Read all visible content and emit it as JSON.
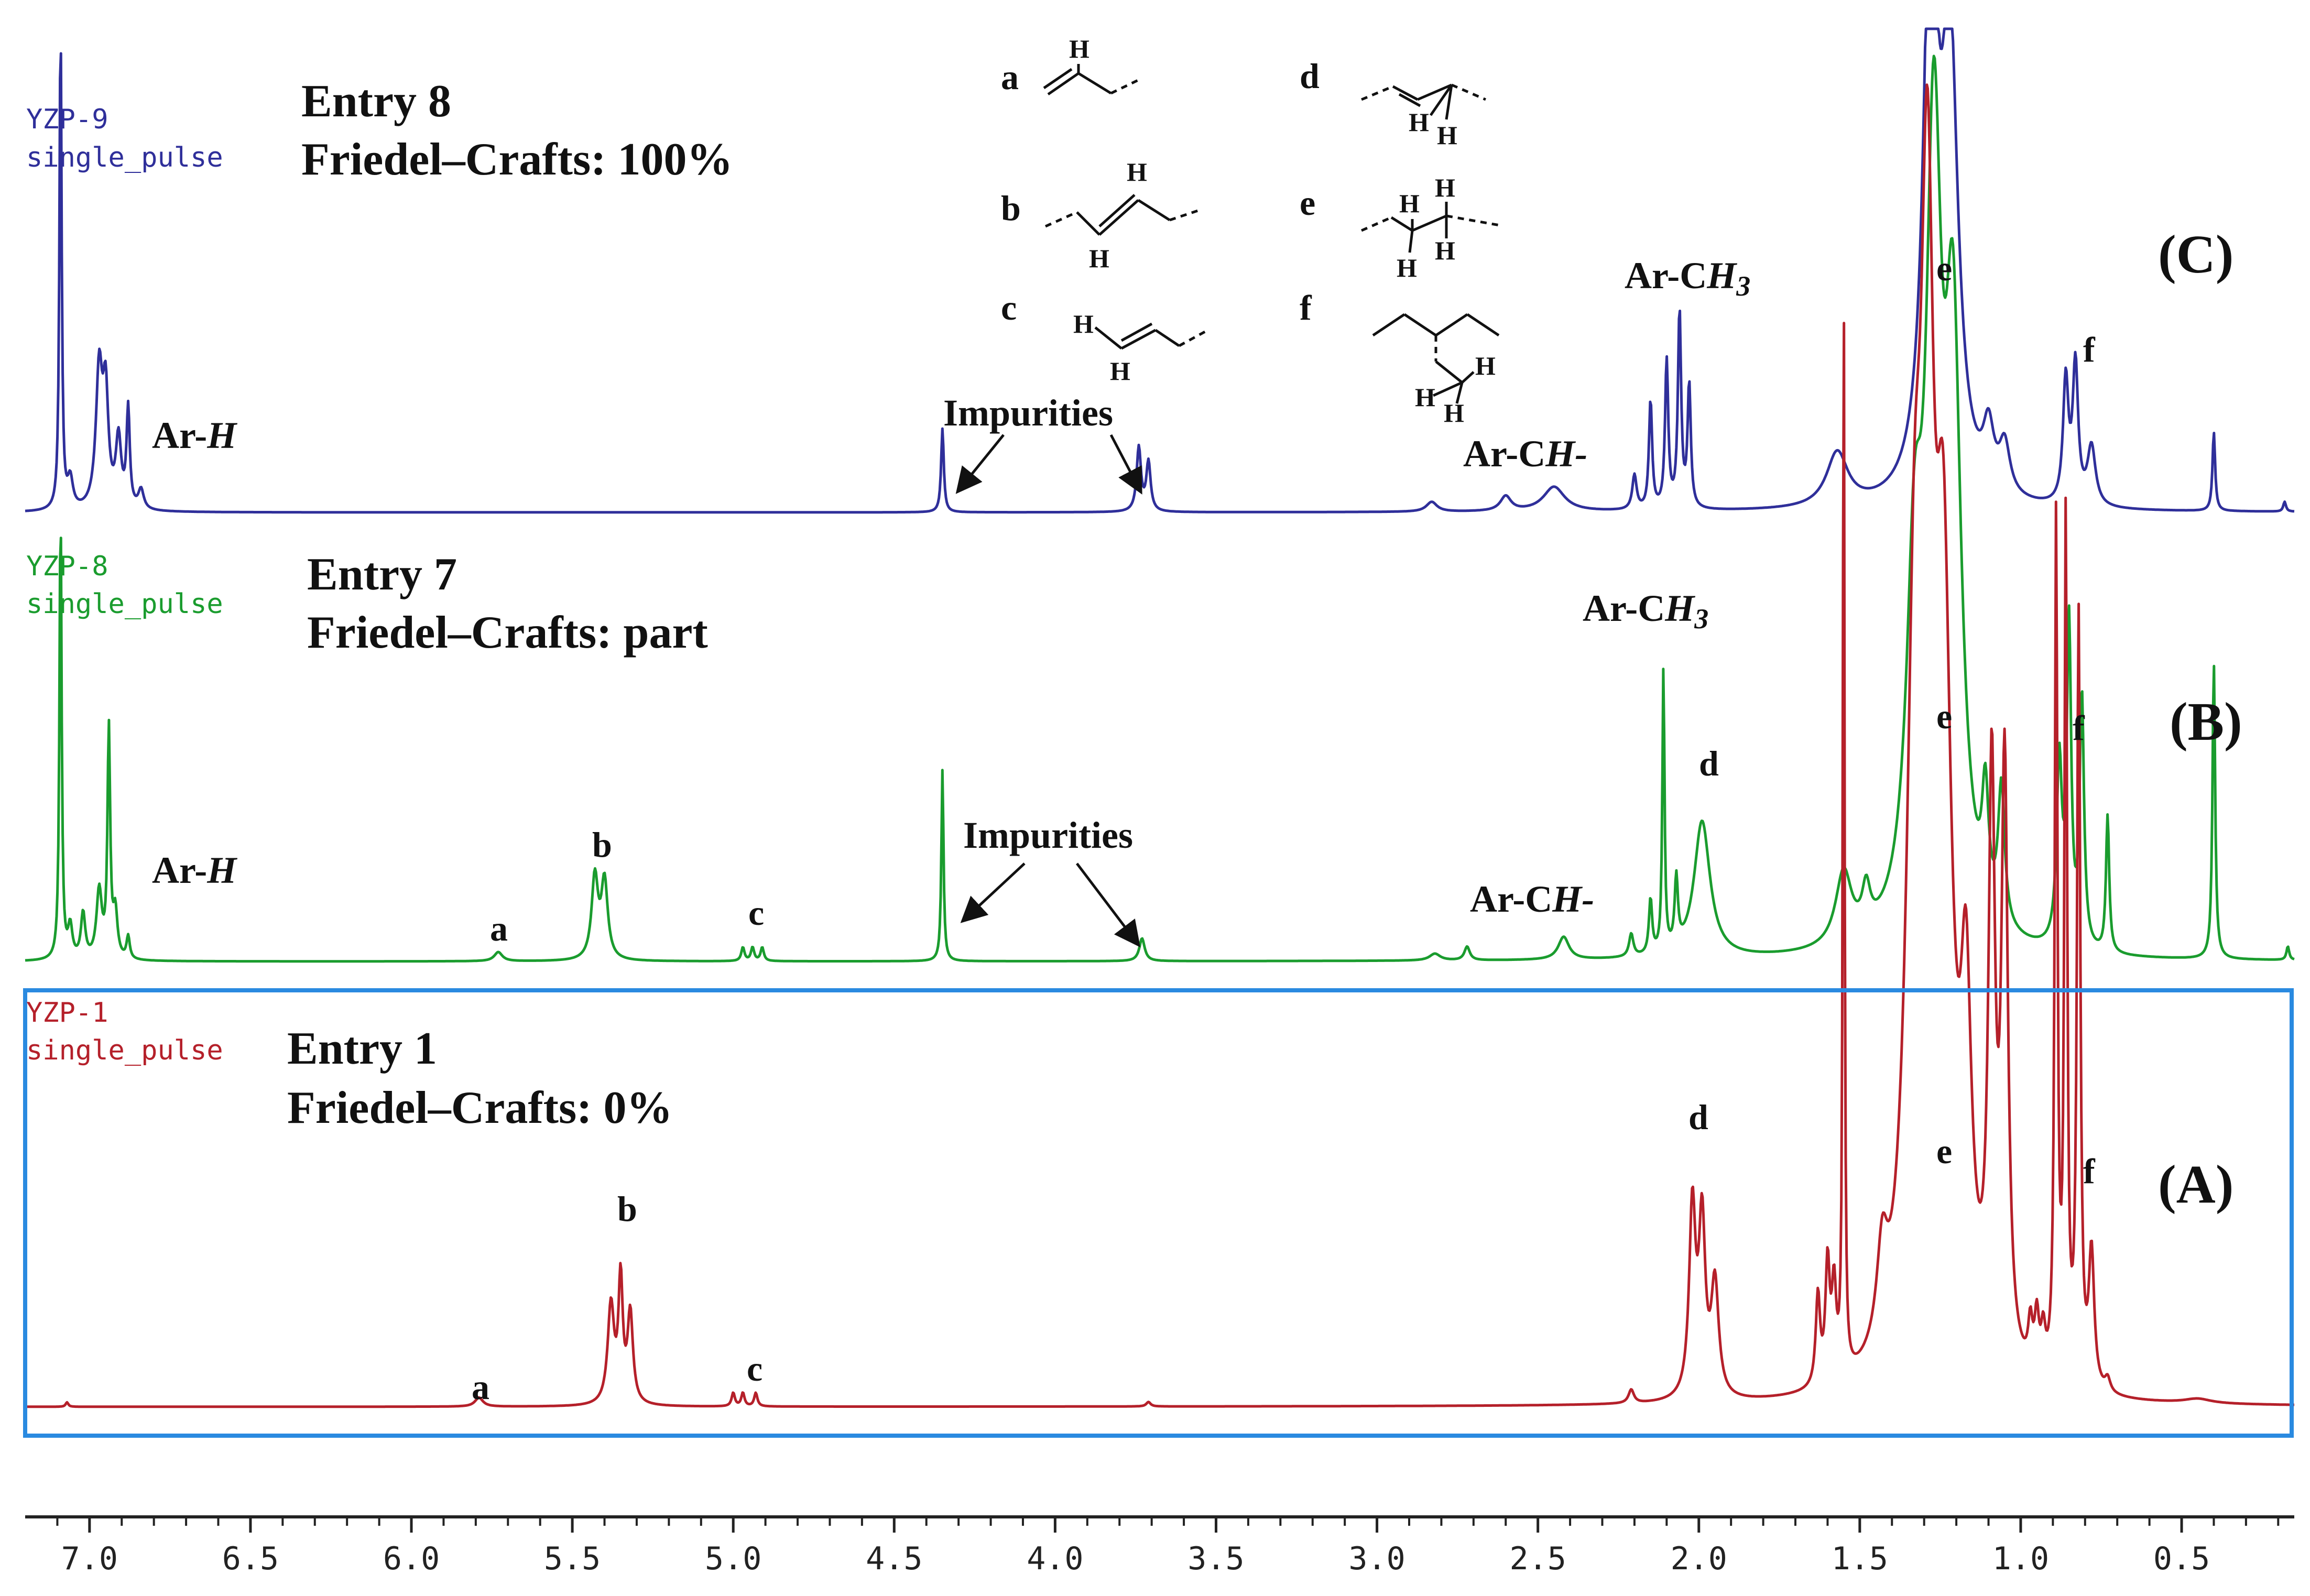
{
  "chart_data": {
    "type": "line",
    "title": "",
    "xlabel": "",
    "ylabel": "",
    "xlim": [
      7.2,
      0.15
    ],
    "x_reversed": true,
    "grid": false,
    "x_ticks": [
      "7.0",
      "6.5",
      "6.0",
      "5.5",
      "5.0",
      "4.5",
      "4.0",
      "3.5",
      "3.0",
      "2.5",
      "2.0",
      "1.5",
      "1.0",
      "0.5"
    ],
    "x_tick_values": [
      7.0,
      6.5,
      6.0,
      5.5,
      5.0,
      4.5,
      4.0,
      3.5,
      3.0,
      2.5,
      2.0,
      1.5,
      1.0,
      0.5
    ],
    "colors": {
      "C": "#2f2f9a",
      "B": "#1a9c2e",
      "A": "#b5202a",
      "box": "#2a8ae0"
    },
    "series": [
      {
        "key": "C",
        "name": "YZP-9",
        "sub": "single_pulse",
        "entry": "Entry 8",
        "fc": "Friedel–Crafts: 100%",
        "panel": "(C)",
        "peaks": [
          {
            "x": 7.09,
            "h": 1.0,
            "w": 0.004
          },
          {
            "x": 7.06,
            "h": 0.06,
            "w": 0.01
          },
          {
            "x": 6.97,
            "h": 0.28,
            "w": 0.012
          },
          {
            "x": 6.95,
            "h": 0.22,
            "w": 0.01
          },
          {
            "x": 6.91,
            "h": 0.14,
            "w": 0.01
          },
          {
            "x": 6.88,
            "h": 0.2,
            "w": 0.006
          },
          {
            "x": 6.84,
            "h": 0.04,
            "w": 0.01
          },
          {
            "x": 4.35,
            "h": 0.17,
            "w": 0.005
          },
          {
            "x": 3.74,
            "h": 0.13,
            "w": 0.008
          },
          {
            "x": 3.71,
            "h": 0.1,
            "w": 0.008
          },
          {
            "x": 2.83,
            "h": 0.02,
            "w": 0.02
          },
          {
            "x": 2.6,
            "h": 0.03,
            "w": 0.02
          },
          {
            "x": 2.45,
            "h": 0.05,
            "w": 0.04
          },
          {
            "x": 2.2,
            "h": 0.07,
            "w": 0.008
          },
          {
            "x": 2.15,
            "h": 0.22,
            "w": 0.006
          },
          {
            "x": 2.1,
            "h": 0.3,
            "w": 0.006
          },
          {
            "x": 2.06,
            "h": 0.4,
            "w": 0.006
          },
          {
            "x": 2.03,
            "h": 0.25,
            "w": 0.006
          },
          {
            "x": 1.57,
            "h": 0.11,
            "w": 0.04
          },
          {
            "x": 1.28,
            "h": 1.2,
            "w": 0.025
          },
          {
            "x": 1.22,
            "h": 0.9,
            "w": 0.03
          },
          {
            "x": 1.1,
            "h": 0.12,
            "w": 0.02
          },
          {
            "x": 1.05,
            "h": 0.1,
            "w": 0.02
          },
          {
            "x": 0.86,
            "h": 0.25,
            "w": 0.01
          },
          {
            "x": 0.83,
            "h": 0.28,
            "w": 0.01
          },
          {
            "x": 0.78,
            "h": 0.12,
            "w": 0.015
          },
          {
            "x": 0.4,
            "h": 0.16,
            "w": 0.005
          },
          {
            "x": 0.18,
            "h": 0.02,
            "w": 0.005
          }
        ]
      },
      {
        "key": "B",
        "name": "YZP-8",
        "sub": "single_pulse",
        "entry": "Entry 7",
        "fc": "Friedel–Crafts: part",
        "panel": "(B)",
        "peaks": [
          {
            "x": 7.09,
            "h": 1.0,
            "w": 0.004
          },
          {
            "x": 7.06,
            "h": 0.07,
            "w": 0.008
          },
          {
            "x": 7.02,
            "h": 0.1,
            "w": 0.008
          },
          {
            "x": 6.97,
            "h": 0.15,
            "w": 0.01
          },
          {
            "x": 6.94,
            "h": 0.5,
            "w": 0.005
          },
          {
            "x": 6.92,
            "h": 0.1,
            "w": 0.008
          },
          {
            "x": 6.88,
            "h": 0.05,
            "w": 0.006
          },
          {
            "x": 5.73,
            "h": 0.02,
            "w": 0.015
          },
          {
            "x": 5.43,
            "h": 0.18,
            "w": 0.012
          },
          {
            "x": 5.4,
            "h": 0.17,
            "w": 0.012
          },
          {
            "x": 4.97,
            "h": 0.03,
            "w": 0.006
          },
          {
            "x": 4.94,
            "h": 0.03,
            "w": 0.006
          },
          {
            "x": 4.91,
            "h": 0.03,
            "w": 0.006
          },
          {
            "x": 4.35,
            "h": 0.42,
            "w": 0.004
          },
          {
            "x": 3.73,
            "h": 0.05,
            "w": 0.01
          },
          {
            "x": 2.82,
            "h": 0.015,
            "w": 0.02
          },
          {
            "x": 2.72,
            "h": 0.03,
            "w": 0.01
          },
          {
            "x": 2.42,
            "h": 0.05,
            "w": 0.02
          },
          {
            "x": 2.21,
            "h": 0.05,
            "w": 0.008
          },
          {
            "x": 2.15,
            "h": 0.12,
            "w": 0.006
          },
          {
            "x": 2.11,
            "h": 0.62,
            "w": 0.004
          },
          {
            "x": 2.07,
            "h": 0.15,
            "w": 0.006
          },
          {
            "x": 1.99,
            "h": 0.3,
            "w": 0.03
          },
          {
            "x": 1.55,
            "h": 0.16,
            "w": 0.03
          },
          {
            "x": 1.48,
            "h": 0.09,
            "w": 0.015
          },
          {
            "x": 1.33,
            "h": 0.7,
            "w": 0.03
          },
          {
            "x": 1.27,
            "h": 1.6,
            "w": 0.03
          },
          {
            "x": 1.21,
            "h": 1.2,
            "w": 0.03
          },
          {
            "x": 1.11,
            "h": 0.25,
            "w": 0.012
          },
          {
            "x": 1.06,
            "h": 0.3,
            "w": 0.012
          },
          {
            "x": 0.88,
            "h": 0.4,
            "w": 0.01
          },
          {
            "x": 0.85,
            "h": 0.7,
            "w": 0.008
          },
          {
            "x": 0.81,
            "h": 0.55,
            "w": 0.008
          },
          {
            "x": 0.73,
            "h": 0.3,
            "w": 0.006
          },
          {
            "x": 0.4,
            "h": 0.65,
            "w": 0.005
          },
          {
            "x": 0.17,
            "h": 0.03,
            "w": 0.005
          }
        ]
      },
      {
        "key": "A",
        "name": "YZP-1",
        "sub": "single_pulse",
        "entry": "Entry 1",
        "fc": "Friedel–Crafts: 0%",
        "panel": "(A)",
        "peaks": [
          {
            "x": 7.07,
            "h": 0.01,
            "w": 0.005
          },
          {
            "x": 5.79,
            "h": 0.02,
            "w": 0.015
          },
          {
            "x": 5.38,
            "h": 0.22,
            "w": 0.012
          },
          {
            "x": 5.35,
            "h": 0.27,
            "w": 0.008
          },
          {
            "x": 5.32,
            "h": 0.2,
            "w": 0.01
          },
          {
            "x": 5.0,
            "h": 0.03,
            "w": 0.006
          },
          {
            "x": 4.97,
            "h": 0.03,
            "w": 0.006
          },
          {
            "x": 4.93,
            "h": 0.03,
            "w": 0.006
          },
          {
            "x": 3.71,
            "h": 0.01,
            "w": 0.008
          },
          {
            "x": 2.21,
            "h": 0.03,
            "w": 0.01
          },
          {
            "x": 2.02,
            "h": 0.42,
            "w": 0.012
          },
          {
            "x": 1.99,
            "h": 0.38,
            "w": 0.012
          },
          {
            "x": 1.95,
            "h": 0.25,
            "w": 0.014
          },
          {
            "x": 1.63,
            "h": 0.2,
            "w": 0.008
          },
          {
            "x": 1.6,
            "h": 0.26,
            "w": 0.008
          },
          {
            "x": 1.58,
            "h": 0.2,
            "w": 0.008
          },
          {
            "x": 1.55,
            "h": 2.5,
            "w": 0.003
          },
          {
            "x": 1.43,
            "h": 0.2,
            "w": 0.02
          },
          {
            "x": 1.33,
            "h": 1.4,
            "w": 0.03
          },
          {
            "x": 1.29,
            "h": 2.0,
            "w": 0.025
          },
          {
            "x": 1.24,
            "h": 1.5,
            "w": 0.03
          },
          {
            "x": 1.17,
            "h": 0.7,
            "w": 0.02
          },
          {
            "x": 1.09,
            "h": 1.25,
            "w": 0.012
          },
          {
            "x": 1.05,
            "h": 1.3,
            "w": 0.012
          },
          {
            "x": 0.97,
            "h": 0.1,
            "w": 0.008
          },
          {
            "x": 0.95,
            "h": 0.12,
            "w": 0.008
          },
          {
            "x": 0.93,
            "h": 0.09,
            "w": 0.008
          },
          {
            "x": 0.89,
            "h": 1.9,
            "w": 0.005
          },
          {
            "x": 0.86,
            "h": 1.9,
            "w": 0.005
          },
          {
            "x": 0.82,
            "h": 1.7,
            "w": 0.006
          },
          {
            "x": 0.78,
            "h": 0.3,
            "w": 0.01
          },
          {
            "x": 0.73,
            "h": 0.03,
            "w": 0.01
          },
          {
            "x": 0.45,
            "h": 0.01,
            "w": 0.05
          }
        ]
      }
    ],
    "annotations": {
      "ar_h": "Ar-H",
      "ar_ch": "Ar-CH-",
      "ar_ch3": "Ar-CH3",
      "impurities": "Impurities",
      "peak_letters": [
        "a",
        "b",
        "c",
        "d",
        "e",
        "f"
      ],
      "structure_h": "H"
    }
  }
}
